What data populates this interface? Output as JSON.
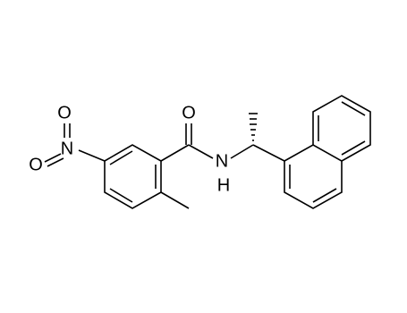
{
  "atoms": [
    {
      "label": "O"
    },
    {
      "label": "N"
    },
    {
      "label": "O"
    },
    {
      "label": "O"
    },
    {
      "label": "N"
    },
    {
      "label": "H"
    }
  ]
}
